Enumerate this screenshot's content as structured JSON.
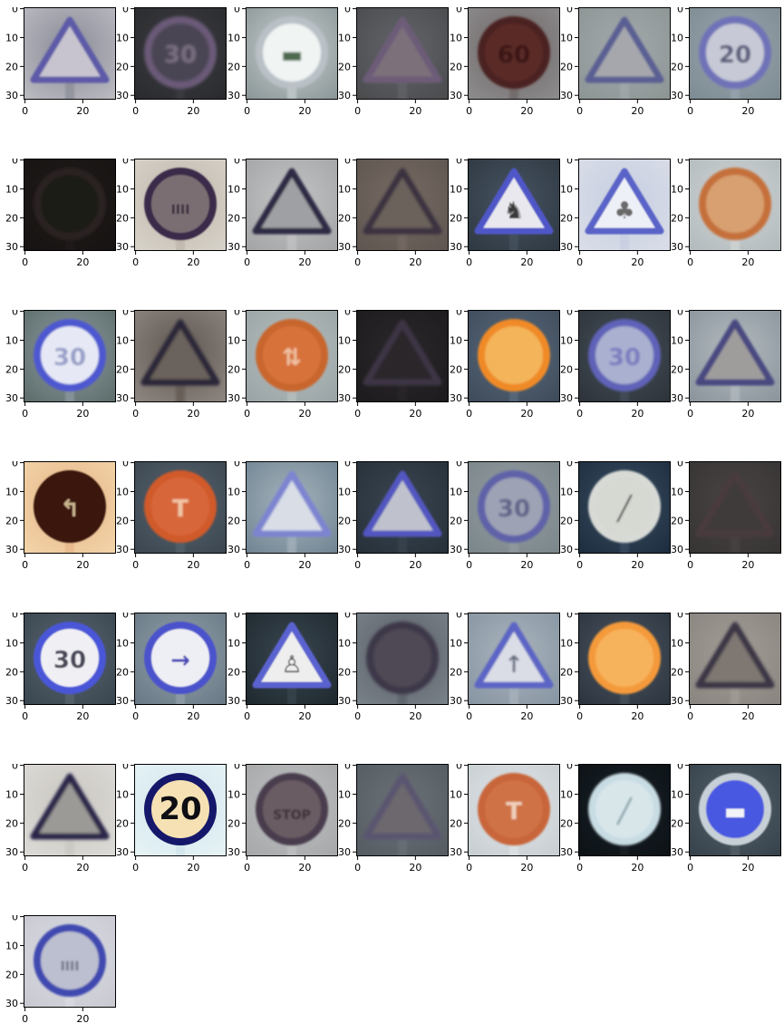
{
  "axis": {
    "x_ticks": [
      "0",
      "20"
    ],
    "y_ticks": [
      "0",
      "10",
      "20",
      "30"
    ]
  },
  "image_grid": {
    "columns": 7,
    "rows": 7,
    "tiles": [
      {
        "bg": "#b9b9c0",
        "mid": "#8a8c97",
        "shape": "triangle",
        "color": "#5d5aa8",
        "fill": "#c8c4cf",
        "glyph": "",
        "glyph_color": "#3a3450",
        "blur": 1.0
      },
      {
        "bg": "#2a2b2e",
        "mid": "#3e3e43",
        "shape": "circle",
        "color": "#6b5a78",
        "fill": "#4a4552",
        "glyph": "30",
        "glyph_color": "#7a6f82",
        "blur": 1.6
      },
      {
        "bg": "#8d989a",
        "mid": "#c8d0cf",
        "shape": "circle",
        "color": "#b9c0c6",
        "fill": "#f0f4f3",
        "glyph": "▬",
        "glyph_color": "#4e6b4f",
        "blur": 1.2
      },
      {
        "bg": "#4a4c4e",
        "mid": "#63656b",
        "shape": "triangle",
        "color": "#6d5b78",
        "fill": "#7b6f7a",
        "glyph": "",
        "glyph_color": "#553f49",
        "blur": 1.4
      },
      {
        "bg": "#8c8b8c",
        "mid": "#6e6565",
        "shape": "circle",
        "color": "#4b2220",
        "fill": "#5a2a26",
        "glyph": "60",
        "glyph_color": "#3a1614",
        "blur": 1.3
      },
      {
        "bg": "#8d9595",
        "mid": "#a4aaac",
        "shape": "triangle",
        "color": "#5a5f93",
        "fill": "#a6a7ad",
        "glyph": "",
        "glyph_color": "#555",
        "blur": 1.2
      },
      {
        "bg": "#7e8c93",
        "mid": "#9aa6b0",
        "shape": "circle",
        "color": "#6f72b8",
        "fill": "#c7c9d6",
        "glyph": "20",
        "glyph_color": "#5a5d7a",
        "blur": 1.2
      },
      {
        "bg": "#161312",
        "mid": "#201c1a",
        "shape": "circle",
        "color": "#2c2320",
        "fill": "#1f1a18",
        "glyph": "",
        "glyph_color": "#2a2220",
        "blur": 1.6
      },
      {
        "bg": "#d7d2c9",
        "mid": "#bdb5aa",
        "shape": "circle",
        "color": "#3a2c4a",
        "fill": "#7a6e73",
        "glyph": "IIII",
        "glyph_color": "#3a2e3c",
        "blur": 0.9
      },
      {
        "bg": "#a4a5a6",
        "mid": "#c4c5c6",
        "shape": "triangle",
        "color": "#2d2a45",
        "fill": "#9fa0a3",
        "glyph": "",
        "glyph_color": "#444",
        "blur": 1.4
      },
      {
        "bg": "#5f5651",
        "mid": "#776b63",
        "shape": "triangle",
        "color": "#3b3340",
        "fill": "#6c625c",
        "glyph": "",
        "glyph_color": "#3e3634",
        "blur": 1.6
      },
      {
        "bg": "#2f3943",
        "mid": "#465361",
        "shape": "triangle",
        "color": "#5057c8",
        "fill": "#e8e8ee",
        "glyph": "♞",
        "glyph_color": "#3a3a3a",
        "blur": 0.8
      },
      {
        "bg": "#d9dde8",
        "mid": "#c6cee0",
        "shape": "triangle",
        "color": "#5a63c8",
        "fill": "#edf0f6",
        "glyph": "♣",
        "glyph_color": "#6a6a6a",
        "blur": 0.9
      },
      {
        "bg": "#b3bbbe",
        "mid": "#d2d6d6",
        "shape": "circle",
        "color": "#c5703a",
        "fill": "#d8a070",
        "glyph": "",
        "glyph_color": "#5a70a8",
        "blur": 1.3
      },
      {
        "bg": "#5e6e6c",
        "mid": "#8f9ba3",
        "shape": "circle",
        "color": "#4e58d0",
        "fill": "#e6e9f5",
        "glyph": "30",
        "glyph_color": "#9aa0c8",
        "blur": 1.0
      },
      {
        "bg": "#8c847e",
        "mid": "#5e5650",
        "shape": "triangle",
        "color": "#2c2838",
        "fill": "#6a625c",
        "glyph": "",
        "glyph_color": "#333",
        "blur": 1.6
      },
      {
        "bg": "#9aa4a6",
        "mid": "#b9c0c0",
        "shape": "circle",
        "color": "#c8662e",
        "fill": "#d8723a",
        "glyph": "⇅",
        "glyph_color": "#f0c0a0",
        "blur": 1.1
      },
      {
        "bg": "#1d1b1d",
        "mid": "#2b282b",
        "shape": "triangle",
        "color": "#3c3445",
        "fill": "#2a2629",
        "glyph": "",
        "glyph_color": "#333",
        "blur": 1.7
      },
      {
        "bg": "#3e4b5b",
        "mid": "#5c6d7e",
        "shape": "circle",
        "color": "#f08a28",
        "fill": "#f4b45a",
        "glyph": "",
        "glyph_color": "#fff5d8",
        "blur": 1.0
      },
      {
        "bg": "#2e343a",
        "mid": "#46505c",
        "shape": "circle",
        "color": "#5e62b8",
        "fill": "#aab0d0",
        "glyph": "30",
        "glyph_color": "#7a7ec0",
        "blur": 1.4
      },
      {
        "bg": "#8c959c",
        "mid": "#b4bcc1",
        "shape": "triangle",
        "color": "#4a4a80",
        "fill": "#9f9c9c",
        "glyph": "",
        "glyph_color": "#5a4f4a",
        "blur": 1.3
      },
      {
        "bg": "#f2d3a8",
        "mid": "#e6b688",
        "shape": "circle",
        "color": "#3a1508",
        "fill": "#3a1508",
        "glyph": "↰",
        "glyph_color": "#c8b08a",
        "blur": 0.8
      },
      {
        "bg": "#3c4752",
        "mid": "#56636d",
        "shape": "circle",
        "color": "#d05a2a",
        "fill": "#d8663a",
        "glyph": "T",
        "glyph_color": "#f2c4a4",
        "blur": 1.0
      },
      {
        "bg": "#728694",
        "mid": "#a6b4bd",
        "shape": "triangle",
        "color": "#7d84d0",
        "fill": "#d8dde6",
        "glyph": "",
        "glyph_color": "#8a8ea8",
        "blur": 1.2
      },
      {
        "bg": "#27313a",
        "mid": "#3a4550",
        "shape": "triangle",
        "color": "#5257c0",
        "fill": "#bfc2cc",
        "glyph": "",
        "glyph_color": "#444",
        "blur": 1.1
      },
      {
        "bg": "#7c878c",
        "mid": "#939ca1",
        "shape": "circle",
        "color": "#5e62a8",
        "fill": "#9ea2b5",
        "glyph": "30",
        "glyph_color": "#606488",
        "blur": 1.3
      },
      {
        "bg": "#1e2e40",
        "mid": "#3a4e62",
        "shape": "circle",
        "color": "#d8dad6",
        "fill": "#d6d8d2",
        "glyph": "╱",
        "glyph_color": "#2c2c2c",
        "blur": 1.0
      },
      {
        "bg": "#373434",
        "mid": "#4a4545",
        "shape": "triangle",
        "color": "#4a3a3c",
        "fill": "#3f3a3a",
        "glyph": "",
        "glyph_color": "#444",
        "blur": 1.7
      },
      {
        "bg": "#3a4650",
        "mid": "#5a6670",
        "shape": "circle",
        "color": "#4a56d8",
        "fill": "#f0f0f4",
        "glyph": "30",
        "glyph_color": "#4a4a5a",
        "blur": 0.8
      },
      {
        "bg": "#6a7a86",
        "mid": "#93a2ac",
        "shape": "circle",
        "color": "#4b52cc",
        "fill": "#eeeff4",
        "glyph": "→",
        "glyph_color": "#4a4ab8",
        "blur": 0.9
      },
      {
        "bg": "#1f2a30",
        "mid": "#3a4650",
        "shape": "triangle",
        "color": "#5a62d0",
        "fill": "#eeeeee",
        "glyph": "♙",
        "glyph_color": "#333",
        "blur": 0.9
      },
      {
        "bg": "#788088",
        "mid": "#5a5f66",
        "shape": "circle",
        "color": "#3e3848",
        "fill": "#4f4a55",
        "glyph": "",
        "glyph_color": "#333",
        "blur": 1.5
      },
      {
        "bg": "#8896a3",
        "mid": "#aab4bd",
        "shape": "triangle",
        "color": "#5c65c5",
        "fill": "#dadde6",
        "glyph": "↑",
        "glyph_color": "#6a7080",
        "blur": 1.0
      },
      {
        "bg": "#2d3640",
        "mid": "#4a5460",
        "shape": "circle",
        "color": "#f49a3a",
        "fill": "#f7b35c",
        "glyph": "",
        "glyph_color": "#fbe0b2",
        "blur": 1.1
      },
      {
        "bg": "#8a8580",
        "mid": "#a39d97",
        "shape": "triangle",
        "color": "#3a3445",
        "fill": "#7e7772",
        "glyph": "",
        "glyph_color": "#444",
        "blur": 1.6
      },
      {
        "bg": "#dcdad6",
        "mid": "#c9c6c1",
        "shape": "triangle",
        "color": "#2b2848",
        "fill": "#9c9a97",
        "glyph": "",
        "glyph_color": "#555",
        "blur": 1.6
      },
      {
        "bg": "#e6f3f6",
        "mid": "#d0e4ea",
        "shape": "circle",
        "color": "#15186a",
        "fill": "#f6e1b4",
        "glyph": "20",
        "glyph_color": "#0e0e14",
        "blur": 0.0
      },
      {
        "bg": "#a6a8aa",
        "mid": "#c0c2c4",
        "shape": "circle",
        "color": "#4a3c4e",
        "fill": "#6a5c63",
        "glyph": "STOP",
        "glyph_color": "#3a2e34",
        "blur": 1.1
      },
      {
        "bg": "#555c62",
        "mid": "#6b7278",
        "shape": "triangle",
        "color": "#5a5470",
        "fill": "#6c686e",
        "glyph": "",
        "glyph_color": "#444",
        "blur": 1.7
      },
      {
        "bg": "#c8cfd3",
        "mid": "#e0e4e6",
        "shape": "circle",
        "color": "#c8653a",
        "fill": "#cf7244",
        "glyph": "T",
        "glyph_color": "#f0d0bc",
        "blur": 1.1
      },
      {
        "bg": "#0c1216",
        "mid": "#1a2228",
        "shape": "circle",
        "color": "#c8dce4",
        "fill": "#d8e6ea",
        "glyph": "╱",
        "glyph_color": "#6a8a92",
        "blur": 1.3
      },
      {
        "bg": "#37434c",
        "mid": "#56626b",
        "shape": "circle",
        "color": "#c7d0d6",
        "fill": "#4a58e0",
        "glyph": "▬",
        "glyph_color": "#f2f4f8",
        "blur": 0.9
      },
      {
        "bg": "#c9c9d2",
        "mid": "#dadde2",
        "shape": "circle",
        "color": "#4148b0",
        "fill": "#bcbfd0",
        "glyph": "IIII",
        "glyph_color": "#6f7180",
        "blur": 1.0
      }
    ]
  }
}
